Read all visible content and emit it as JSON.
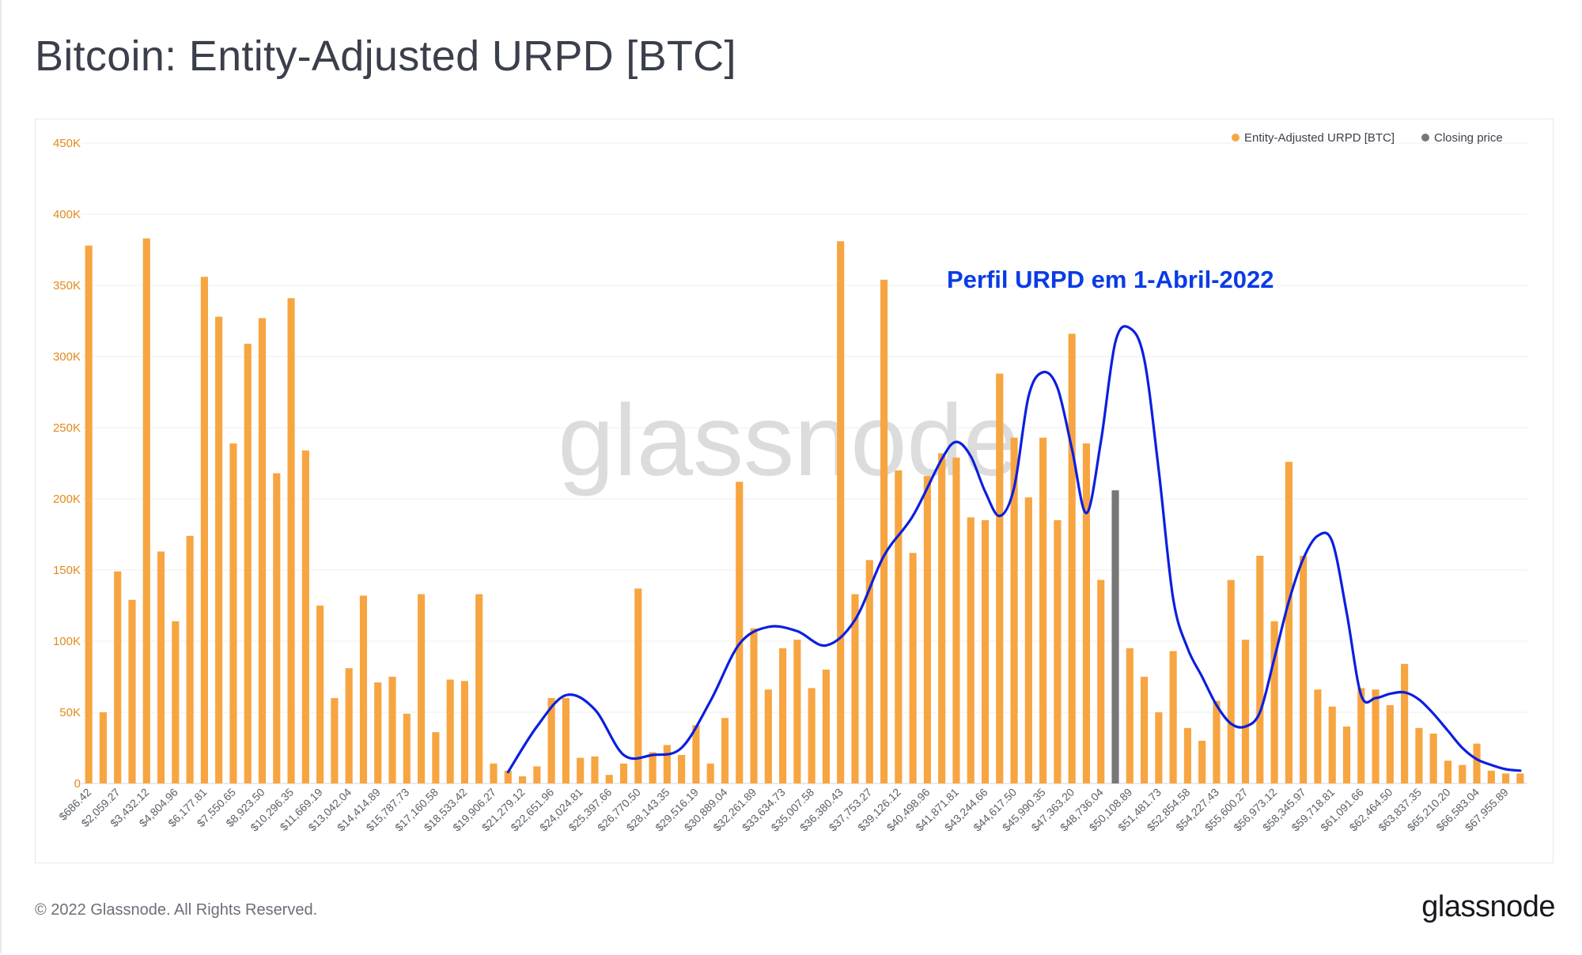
{
  "header": {
    "title": "Bitcoin: Entity-Adjusted URPD [BTC]"
  },
  "footer": {
    "copyright": "© 2022 Glassnode. All Rights Reserved.",
    "brand": "glassnode"
  },
  "watermark": "glassnode",
  "annotation": {
    "text": "Perfil URPD em 1-Abril-2022",
    "color": "#0b3be6"
  },
  "legend": {
    "placement": "top-right",
    "items": [
      {
        "label": "Entity-Adjusted URPD [BTC]",
        "color": "#f7a541"
      },
      {
        "label": "Closing price",
        "color": "#777777"
      }
    ]
  },
  "chart_data": {
    "type": "bar",
    "title": "Bitcoin: Entity-Adjusted URPD [BTC]",
    "ylim": [
      0,
      450000
    ],
    "yticks": [
      "0",
      "50K",
      "100K",
      "150K",
      "200K",
      "250K",
      "300K",
      "350K",
      "400K",
      "450K"
    ],
    "x_tick_labels": [
      "$686.42",
      "$2,059.27",
      "$3,432.12",
      "$4,804.96",
      "$6,177.81",
      "$7,550.65",
      "$8,923.50",
      "$10,296.35",
      "$11,669.19",
      "$13,042.04",
      "$14,414.89",
      "$15,787.73",
      "$17,160.58",
      "$18,533.42",
      "$19,906.27",
      "$21,279.12",
      "$22,651.96",
      "$24,024.81",
      "$25,397.66",
      "$26,770.50",
      "$28,143.35",
      "$29,516.19",
      "$30,889.04",
      "$32,261.89",
      "$33,634.73",
      "$35,007.58",
      "$36,380.43",
      "$37,753.27",
      "$39,126.12",
      "$40,498.96",
      "$41,871.81",
      "$43,244.66",
      "$44,617.50",
      "$45,990.35",
      "$47,363.20",
      "$48,736.04",
      "$50,108.89",
      "$51,481.73",
      "$52,854.58",
      "$54,227.43",
      "$55,600.27",
      "$56,973.12",
      "$58,345.97",
      "$59,718.81",
      "$61,091.66",
      "$62,464.50",
      "$63,837.35",
      "$65,210.20",
      "$66,583.04",
      "$67,955.89"
    ],
    "values": [
      378000,
      50000,
      149000,
      129000,
      383000,
      163000,
      114000,
      174000,
      356000,
      328000,
      239000,
      309000,
      327000,
      218000,
      341000,
      234000,
      125000,
      60000,
      81000,
      132000,
      71000,
      75000,
      49000,
      133000,
      36000,
      73000,
      72000,
      133000,
      14000,
      9000,
      5000,
      12000,
      60000,
      60000,
      18000,
      19000,
      6000,
      14000,
      137000,
      22000,
      27000,
      20000,
      41000,
      14000,
      46000,
      212000,
      109000,
      66000,
      95000,
      101000,
      67000,
      80000,
      381000,
      133000,
      157000,
      354000,
      220000,
      162000,
      216000,
      232000,
      229000,
      187000,
      185000,
      288000,
      243000,
      201000,
      243000,
      185000,
      316000,
      239000,
      143000,
      206000,
      95000,
      75000,
      50000,
      93000,
      39000,
      30000,
      58000,
      143000,
      101000,
      160000,
      114000,
      226000,
      160000,
      66000,
      54000,
      40000,
      67000,
      66000,
      55000,
      84000,
      39000,
      35000,
      16000,
      13000,
      28000,
      9000,
      7000,
      7000
    ],
    "highlight_index": 71,
    "profile_curve": [
      [
        29,
        8000
      ],
      [
        31,
        40000
      ],
      [
        33,
        62000
      ],
      [
        35,
        52000
      ],
      [
        37,
        20000
      ],
      [
        39,
        20000
      ],
      [
        41,
        25000
      ],
      [
        43,
        58000
      ],
      [
        45,
        98000
      ],
      [
        47,
        110000
      ],
      [
        49,
        107000
      ],
      [
        51,
        97000
      ],
      [
        53,
        115000
      ],
      [
        55,
        160000
      ],
      [
        57,
        188000
      ],
      [
        59,
        228000
      ],
      [
        60,
        240000
      ],
      [
        61,
        230000
      ],
      [
        62,
        205000
      ],
      [
        63,
        188000
      ],
      [
        64,
        208000
      ],
      [
        65,
        272000
      ],
      [
        66,
        289000
      ],
      [
        67,
        278000
      ],
      [
        68,
        235000
      ],
      [
        69,
        190000
      ],
      [
        70,
        240000
      ],
      [
        71,
        310000
      ],
      [
        72,
        320000
      ],
      [
        73,
        298000
      ],
      [
        74,
        220000
      ],
      [
        75,
        130000
      ],
      [
        76,
        95000
      ],
      [
        77,
        75000
      ],
      [
        78,
        55000
      ],
      [
        79,
        42000
      ],
      [
        80,
        40000
      ],
      [
        81,
        50000
      ],
      [
        82,
        88000
      ],
      [
        83,
        128000
      ],
      [
        84,
        158000
      ],
      [
        85,
        174000
      ],
      [
        86,
        170000
      ],
      [
        87,
        120000
      ],
      [
        88,
        62000
      ],
      [
        89,
        60000
      ],
      [
        90,
        63000
      ],
      [
        91,
        64000
      ],
      [
        92,
        59000
      ],
      [
        93,
        49000
      ],
      [
        94,
        37000
      ],
      [
        95,
        25000
      ],
      [
        96,
        17000
      ],
      [
        97,
        13000
      ],
      [
        98,
        10000
      ],
      [
        99,
        9000
      ]
    ]
  }
}
